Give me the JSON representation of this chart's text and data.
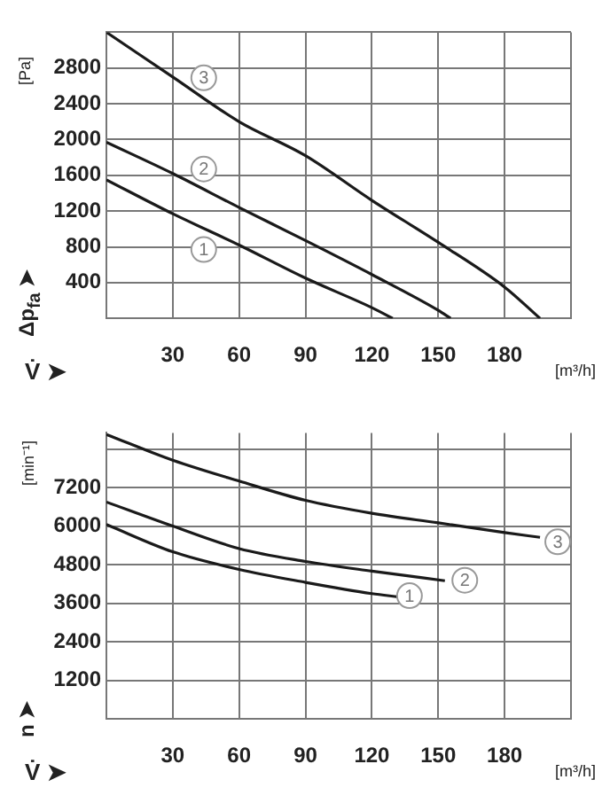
{
  "chart_data": [
    {
      "type": "line",
      "xlabel": "V̇ ➤",
      "ylabel": "Δp$_{fa}$ ➤",
      "annotations": [
        "[Pa]",
        "[m³/h]",
        {
          "text": "3",
          "x": 44,
          "y": 2690
        },
        {
          "text": "2",
          "x": 44,
          "y": 1670
        },
        {
          "text": "1",
          "x": 44,
          "y": 770
        }
      ],
      "series": [
        {
          "color": "#1a1a1a",
          "x": [
            0,
            30,
            60,
            90,
            120,
            150,
            180,
            196
          ],
          "values": [
            3200,
            2700,
            2200,
            1820,
            1320,
            850,
            350,
            0
          ]
        },
        {
          "color": "#1a1a1a",
          "x": [
            0,
            30,
            60,
            90,
            120,
            150,
            155.6
          ],
          "values": [
            1970,
            1620,
            1240,
            870,
            490,
            90,
            0
          ]
        },
        {
          "color": "#1a1a1a",
          "x": [
            0,
            30,
            60,
            90,
            120,
            129.4
          ],
          "values": [
            1550,
            1170,
            820,
            450,
            120,
            0
          ]
        }
      ],
      "xlim": [
        0,
        210
      ],
      "ylim": [
        0,
        3200
      ],
      "xticks": [
        30,
        60,
        90,
        120,
        150,
        180,
        {
          "value": 210,
          "label": null
        }
      ],
      "yticks": [
        400,
        800,
        1200,
        1600,
        2000,
        2400,
        2800,
        {
          "value": 3200,
          "label": null
        }
      ],
      "grid": true,
      "marker": "none",
      "line_style": "solid"
    },
    {
      "type": "line",
      "xlabel": "V̇ ➤",
      "ylabel": "n ➤",
      "annotations": [
        "[min⁻¹]",
        "[m³/h]",
        {
          "text": "3",
          "x": 204,
          "y": 5510
        },
        {
          "text": "2",
          "x": 162,
          "y": 4315
        },
        {
          "text": "1",
          "x": 137,
          "y": 3835
        }
      ],
      "series": [
        {
          "color": "#1a1a1a",
          "x": [
            0,
            30,
            60,
            90,
            120,
            150,
            180,
            196
          ],
          "values": [
            8850,
            8050,
            7400,
            6800,
            6400,
            6100,
            5800,
            5650
          ]
        },
        {
          "color": "#1a1a1a",
          "x": [
            0,
            30,
            60,
            90,
            120,
            153
          ],
          "values": [
            6750,
            6000,
            5300,
            4900,
            4600,
            4300
          ]
        },
        {
          "color": "#1a1a1a",
          "x": [
            0,
            30,
            60,
            90,
            120,
            132
          ],
          "values": [
            6050,
            5200,
            4650,
            4250,
            3900,
            3800
          ]
        }
      ],
      "xlim": [
        0,
        210
      ],
      "ylim": [
        0,
        8900
      ],
      "xticks": [
        30,
        60,
        90,
        120,
        150,
        180,
        {
          "value": 210,
          "label": null
        }
      ],
      "yticks": [
        1200,
        2400,
        3600,
        4800,
        6000,
        7200,
        {
          "value": 8400,
          "label": null
        }
      ],
      "grid": true,
      "marker": "none",
      "line_style": "solid"
    }
  ]
}
